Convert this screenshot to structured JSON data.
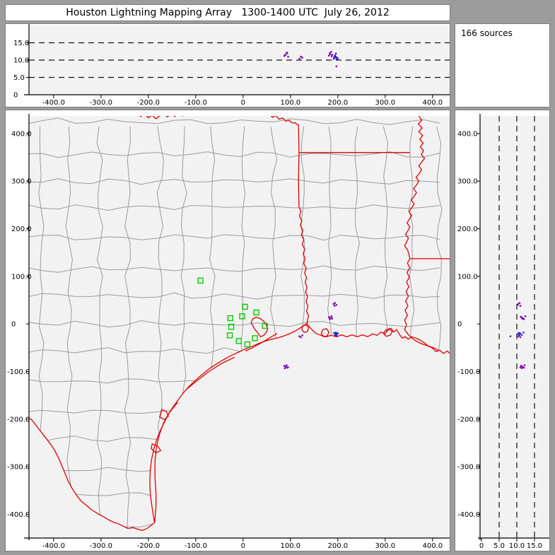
{
  "window": {
    "title": "Houston Lightning Mapping Array   1300-1400 UTC  July 26, 2012"
  },
  "chart_data": {
    "type": "scatter",
    "title": "Houston Lightning Mapping Array 1300-1400 UTC July 26, 2012",
    "source_count_label": "166 sources",
    "units": "km",
    "legend_position": "none",
    "panels": [
      {
        "id": "alt-vs-east",
        "xlim": [
          -452,
          439
        ],
        "ylim": [
          0,
          20
        ],
        "xticks": [
          -400,
          -300,
          -200,
          -100,
          0,
          100,
          200,
          300,
          400
        ],
        "xtick_labels": [
          "-400.0",
          "-300.0",
          "-200.0",
          "-100.0",
          "0",
          "100.0",
          "200.0",
          "300.0",
          "400.0"
        ],
        "yticks": [
          15,
          10,
          5,
          0
        ],
        "ytick_labels": [
          "15.0",
          "10.0",
          "5.0",
          "0"
        ],
        "grid_at": [
          5,
          10,
          15
        ],
        "grid_style": "dashed"
      },
      {
        "id": "plan-view",
        "xlim": [
          -452,
          439
        ],
        "ylim": [
          -450,
          437
        ],
        "xticks": [
          -400,
          -300,
          -200,
          -100,
          0,
          100,
          200,
          300,
          400
        ],
        "xtick_labels": [
          "-400.0",
          "-300.0",
          "-200.0",
          "-100.0",
          "0",
          "100.0",
          "200.0",
          "300.0",
          "400.0"
        ],
        "yticks": [
          400,
          300,
          200,
          100,
          0,
          -100,
          -200,
          -300,
          -400
        ],
        "ytick_labels": [
          "400.0",
          "300.0",
          "200.0",
          "100.0",
          "0",
          "-100.0",
          "-200.0",
          "-300.0",
          "-400.0"
        ]
      },
      {
        "id": "alt-vs-north",
        "xlim": [
          0,
          19.8
        ],
        "ylim": [
          -450,
          437
        ],
        "xticks": [
          0,
          5,
          10,
          15
        ],
        "xtick_labels": [
          "0",
          "5.0",
          "10.0",
          "15.0"
        ],
        "yticks": [
          400,
          300,
          200,
          100,
          0,
          -100,
          -200,
          -300,
          -400
        ],
        "ytick_labels": [
          "400.0",
          "300.0",
          "200.0",
          "100.0",
          "0",
          "-100.0",
          "-200.0",
          "-300.0",
          "-400.0"
        ],
        "grid_at": [
          5,
          10,
          15
        ],
        "grid_style": "dashed"
      }
    ],
    "stations_km": [
      [
        -90,
        91
      ],
      [
        4,
        36
      ],
      [
        28,
        24
      ],
      [
        -2,
        16
      ],
      [
        -27,
        12
      ],
      [
        -25,
        -6
      ],
      [
        46,
        -4
      ],
      [
        -28,
        -24
      ],
      [
        25,
        -30
      ],
      [
        -9,
        -36
      ],
      [
        9,
        -43
      ]
    ],
    "sources_km": [
      [
        191,
        42,
        10.4,
        "p"
      ],
      [
        194,
        44,
        10.8,
        "p"
      ],
      [
        197,
        40,
        10.2,
        "p"
      ],
      [
        193,
        38,
        11.0,
        "p"
      ],
      [
        181,
        14,
        11.3,
        "p"
      ],
      [
        184,
        12,
        11.7,
        "p"
      ],
      [
        187,
        15,
        11.1,
        "p"
      ],
      [
        183,
        10,
        12.0,
        "p"
      ],
      [
        188,
        11,
        11.5,
        "p"
      ],
      [
        186,
        16,
        12.4,
        "p"
      ],
      [
        192,
        -19,
        10.6,
        "b"
      ],
      [
        195,
        -20,
        11.0,
        "b"
      ],
      [
        198,
        -21,
        10.3,
        "b"
      ],
      [
        194,
        -23,
        11.4,
        "b"
      ],
      [
        197,
        -24,
        10.8,
        "b"
      ],
      [
        200,
        -20,
        10.5,
        "b"
      ],
      [
        196,
        -18,
        11.9,
        "b"
      ],
      [
        197,
        -26,
        8.2,
        "p"
      ],
      [
        119,
        -26,
        10.4,
        "p"
      ],
      [
        122,
        -28,
        11.0,
        "p"
      ],
      [
        125,
        -24,
        10.7,
        "p"
      ],
      [
        87,
        -88,
        11.2,
        "p"
      ],
      [
        90,
        -90,
        11.6,
        "p"
      ],
      [
        93,
        -92,
        12.0,
        "p"
      ],
      [
        88,
        -93,
        11.4,
        "p"
      ],
      [
        92,
        -87,
        12.2,
        "p"
      ],
      [
        95,
        -91,
        11.0,
        "p"
      ]
    ],
    "colors": {
      "purple": "#7b00b4",
      "blue": "#2222cc",
      "station": "#00cc00",
      "border": "#dd0000",
      "county": "#9b9b9b",
      "plot_bg": "#f2f2f2",
      "frame": "#9c9c9c",
      "panel_bg": "#ffffff",
      "axis": "#000000"
    }
  },
  "map_geometry": {
    "red_river": [
      [
        -225,
        446
      ],
      [
        -216,
        436
      ],
      [
        -208,
        442
      ],
      [
        -200,
        433
      ],
      [
        -192,
        439
      ],
      [
        -184,
        431
      ],
      [
        -176,
        437
      ],
      [
        -168,
        442
      ],
      [
        -160,
        435
      ],
      [
        -152,
        441
      ],
      [
        -144,
        436
      ],
      [
        -136,
        443
      ],
      [
        -128,
        437
      ],
      [
        -120,
        444
      ],
      [
        -112,
        438
      ],
      [
        -104,
        444
      ],
      [
        -96,
        449
      ],
      [
        -75,
        455
      ],
      [
        -40,
        457
      ],
      [
        -10,
        452
      ],
      [
        5,
        447
      ],
      [
        12,
        451
      ],
      [
        20,
        445
      ],
      [
        27,
        449
      ],
      [
        34,
        442
      ],
      [
        41,
        446
      ],
      [
        48,
        438
      ],
      [
        55,
        442
      ],
      [
        62,
        434
      ],
      [
        69,
        438
      ],
      [
        76,
        430
      ],
      [
        83,
        433
      ],
      [
        90,
        426
      ],
      [
        97,
        428
      ],
      [
        104,
        422
      ],
      [
        110,
        423
      ],
      [
        114,
        419
      ],
      [
        117,
        419
      ]
    ],
    "tx_east_border": [
      [
        117,
        419
      ],
      [
        118,
        360
      ],
      [
        117,
        300
      ],
      [
        118,
        246
      ]
    ],
    "sabine_river": [
      [
        118,
        246
      ],
      [
        122,
        237
      ],
      [
        119,
        227
      ],
      [
        124,
        217
      ],
      [
        121,
        207
      ],
      [
        126,
        197
      ],
      [
        123,
        187
      ],
      [
        128,
        177
      ],
      [
        125,
        167
      ],
      [
        130,
        157
      ],
      [
        127,
        147
      ],
      [
        131,
        137
      ],
      [
        128,
        127
      ],
      [
        133,
        117
      ],
      [
        130,
        107
      ],
      [
        134,
        97
      ],
      [
        131,
        87
      ],
      [
        135,
        77
      ],
      [
        132,
        67
      ],
      [
        136,
        57
      ],
      [
        133,
        47
      ],
      [
        137,
        37
      ],
      [
        134,
        27
      ],
      [
        138,
        17
      ],
      [
        136,
        8
      ],
      [
        135,
        1
      ]
    ],
    "ar_la_border": [
      [
        118,
        360
      ],
      [
        352,
        360
      ]
    ],
    "la_ms_border": [
      [
        352,
        137
      ],
      [
        439,
        137
      ]
    ],
    "mississippi_river": [
      [
        371,
        437
      ],
      [
        377,
        428
      ],
      [
        370,
        420
      ],
      [
        378,
        412
      ],
      [
        371,
        404
      ],
      [
        379,
        396
      ],
      [
        373,
        388
      ],
      [
        380,
        380
      ],
      [
        374,
        372
      ],
      [
        381,
        364
      ],
      [
        376,
        356
      ],
      [
        383,
        348
      ],
      [
        377,
        340
      ],
      [
        371,
        332
      ],
      [
        377,
        324
      ],
      [
        372,
        316
      ],
      [
        365,
        308
      ],
      [
        371,
        300
      ],
      [
        366,
        292
      ],
      [
        360,
        284
      ],
      [
        366,
        276
      ],
      [
        361,
        268
      ],
      [
        355,
        260
      ],
      [
        361,
        252
      ],
      [
        356,
        244
      ],
      [
        350,
        236
      ],
      [
        356,
        228
      ],
      [
        351,
        220
      ],
      [
        346,
        212
      ],
      [
        352,
        204
      ],
      [
        348,
        196
      ],
      [
        343,
        188
      ],
      [
        349,
        180
      ],
      [
        345,
        172
      ],
      [
        341,
        164
      ],
      [
        347,
        156
      ],
      [
        350,
        147
      ],
      [
        352,
        137
      ],
      [
        347,
        128
      ],
      [
        352,
        118
      ],
      [
        346,
        108
      ],
      [
        351,
        98
      ],
      [
        345,
        88
      ],
      [
        350,
        78
      ],
      [
        344,
        68
      ],
      [
        349,
        58
      ],
      [
        343,
        48
      ],
      [
        348,
        38
      ],
      [
        342,
        28
      ],
      [
        347,
        18
      ],
      [
        341,
        8
      ],
      [
        345,
        -2
      ],
      [
        341,
        -12
      ],
      [
        347,
        -20
      ],
      [
        354,
        -28
      ],
      [
        362,
        -34
      ],
      [
        371,
        -39
      ],
      [
        380,
        -43
      ],
      [
        390,
        -46
      ],
      [
        399,
        -49
      ],
      [
        408,
        -53
      ],
      [
        412,
        -56
      ]
    ],
    "coast": [
      [
        439,
        -64
      ],
      [
        431,
        -57
      ],
      [
        423,
        -62
      ],
      [
        415,
        -55
      ],
      [
        407,
        -58
      ],
      [
        399,
        -50
      ],
      [
        391,
        -47
      ],
      [
        383,
        -40
      ],
      [
        374,
        -34
      ],
      [
        365,
        -30
      ],
      [
        356,
        -27
      ],
      [
        349,
        -32
      ],
      [
        342,
        -27
      ],
      [
        336,
        -30
      ],
      [
        330,
        -22
      ],
      [
        324,
        -12
      ],
      [
        318,
        -17
      ],
      [
        312,
        -9
      ],
      [
        306,
        -13
      ],
      [
        299,
        -21
      ],
      [
        291,
        -17
      ],
      [
        283,
        -24
      ],
      [
        273,
        -21
      ],
      [
        263,
        -27
      ],
      [
        252,
        -23
      ],
      [
        241,
        -27
      ],
      [
        230,
        -23
      ],
      [
        219,
        -27
      ],
      [
        208,
        -23
      ],
      [
        197,
        -27
      ],
      [
        186,
        -24
      ],
      [
        175,
        -27
      ],
      [
        164,
        -24
      ],
      [
        154,
        -20
      ],
      [
        146,
        -13
      ],
      [
        139,
        -5
      ],
      [
        135,
        1
      ],
      [
        128,
        -3
      ],
      [
        120,
        -9
      ],
      [
        110,
        -15
      ],
      [
        99,
        -20
      ],
      [
        87,
        -25
      ],
      [
        74,
        -29
      ],
      [
        61,
        -32
      ],
      [
        47,
        -36
      ],
      [
        33,
        -41
      ],
      [
        19,
        -47
      ],
      [
        4,
        -53
      ],
      [
        -11,
        -60
      ],
      [
        -26,
        -67
      ],
      [
        -41,
        -75
      ],
      [
        -56,
        -84
      ],
      [
        -71,
        -94
      ],
      [
        -86,
        -106
      ],
      [
        -100,
        -118
      ],
      [
        -114,
        -131
      ],
      [
        -127,
        -146
      ],
      [
        -139,
        -162
      ],
      [
        -151,
        -179
      ],
      [
        -162,
        -198
      ],
      [
        -172,
        -218
      ],
      [
        -181,
        -239
      ],
      [
        -188,
        -261
      ],
      [
        -193,
        -284
      ],
      [
        -196,
        -308
      ],
      [
        -197,
        -332
      ],
      [
        -196,
        -356
      ],
      [
        -193,
        -379
      ],
      [
        -190,
        -399
      ],
      [
        -188,
        -411
      ],
      [
        -187,
        -418
      ]
    ],
    "rio_grande": [
      [
        -187,
        -418
      ],
      [
        -195,
        -424
      ],
      [
        -203,
        -430
      ],
      [
        -213,
        -434
      ],
      [
        -223,
        -431
      ],
      [
        -233,
        -428
      ],
      [
        -243,
        -430
      ],
      [
        -253,
        -425
      ],
      [
        -263,
        -420
      ],
      [
        -273,
        -417
      ],
      [
        -283,
        -412
      ],
      [
        -293,
        -406
      ],
      [
        -303,
        -401
      ],
      [
        -313,
        -395
      ],
      [
        -322,
        -389
      ],
      [
        -331,
        -381
      ],
      [
        -340,
        -374
      ],
      [
        -348,
        -365
      ],
      [
        -355,
        -355
      ],
      [
        -362,
        -344
      ],
      [
        -368,
        -333
      ],
      [
        -373,
        -321
      ],
      [
        -378,
        -309
      ],
      [
        -383,
        -297
      ],
      [
        -388,
        -285
      ],
      [
        -394,
        -273
      ],
      [
        -400,
        -262
      ],
      [
        -407,
        -252
      ],
      [
        -414,
        -243
      ],
      [
        -421,
        -234
      ],
      [
        -428,
        -225
      ],
      [
        -435,
        -216
      ],
      [
        -441,
        -208
      ],
      [
        -447,
        -201
      ],
      [
        -452,
        -198
      ]
    ],
    "lakes": [
      [
        [
          20,
          10
        ],
        [
          27,
          14
        ],
        [
          35,
          12
        ],
        [
          43,
          6
        ],
        [
          49,
          -2
        ],
        [
          52,
          -10
        ],
        [
          49,
          -18
        ],
        [
          43,
          -24
        ],
        [
          37,
          -27
        ],
        [
          32,
          -20
        ],
        [
          26,
          -13
        ],
        [
          21,
          -5
        ],
        [
          17,
          3
        ],
        [
          20,
          10
        ]
      ],
      [
        [
          126,
          -4
        ],
        [
          133,
          -2
        ],
        [
          138,
          -8
        ],
        [
          136,
          -16
        ],
        [
          129,
          -18
        ],
        [
          124,
          -12
        ],
        [
          126,
          -4
        ]
      ],
      [
        [
          168,
          -12
        ],
        [
          176,
          -10
        ],
        [
          181,
          -17
        ],
        [
          178,
          -25
        ],
        [
          170,
          -27
        ],
        [
          165,
          -20
        ],
        [
          168,
          -12
        ]
      ],
      [
        [
          300,
          -14
        ],
        [
          308,
          -10
        ],
        [
          315,
          -16
        ],
        [
          310,
          -24
        ],
        [
          302,
          -26
        ],
        [
          296,
          -20
        ],
        [
          300,
          -14
        ]
      ],
      [
        [
          -172,
          -180
        ],
        [
          -162,
          -184
        ],
        [
          -158,
          -194
        ],
        [
          -166,
          -201
        ],
        [
          -176,
          -196
        ],
        [
          -172,
          -180
        ]
      ],
      [
        [
          -192,
          -252
        ],
        [
          -180,
          -257
        ],
        [
          -174,
          -266
        ],
        [
          -184,
          -271
        ],
        [
          -194,
          -262
        ],
        [
          -192,
          -252
        ]
      ]
    ],
    "islands": [
      [
        [
          72,
          -20
        ],
        [
          55,
          -30
        ],
        [
          38,
          -40
        ],
        [
          20,
          -50
        ],
        [
          5,
          -57
        ]
      ],
      [
        [
          -18,
          -70
        ],
        [
          -45,
          -83
        ],
        [
          -72,
          -100
        ],
        [
          -98,
          -120
        ],
        [
          -120,
          -138
        ]
      ],
      [
        [
          -138,
          -165
        ],
        [
          -155,
          -185
        ],
        [
          -168,
          -208
        ],
        [
          -177,
          -233
        ],
        [
          -183,
          -260
        ],
        [
          -186,
          -290
        ],
        [
          -186,
          -322
        ],
        [
          -184,
          -355
        ],
        [
          -184,
          -385
        ],
        [
          -186,
          -410
        ],
        [
          -187,
          -418
        ]
      ]
    ],
    "county_grid": {
      "cell": 60,
      "jitter": 7,
      "seed": 26
    }
  }
}
